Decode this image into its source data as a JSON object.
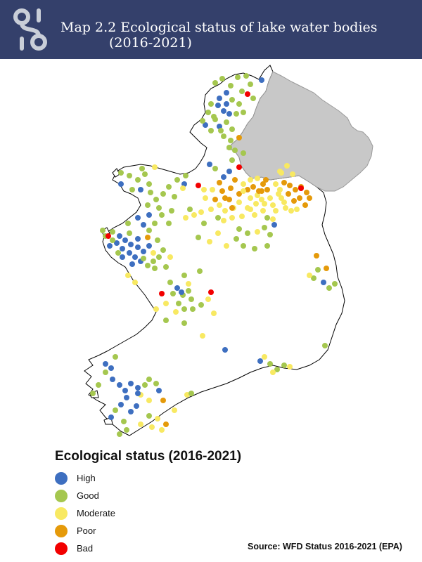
{
  "header": {
    "title_line1": "Map 2.2 Ecological status of lake water bodies",
    "title_line2": "(2016-2021)",
    "logo_icon": "epa-logo-icon"
  },
  "legend": {
    "title": "Ecological status (2016-2021)",
    "items": [
      {
        "label": "High",
        "color": "#3e6fc0"
      },
      {
        "label": "Good",
        "color": "#a5c74f"
      },
      {
        "label": "Moderate",
        "color": "#f8e962"
      },
      {
        "label": "Poor",
        "color": "#e59a0a"
      },
      {
        "label": "Bad",
        "color": "#f20000"
      }
    ]
  },
  "map": {
    "land_color": "#ffffff",
    "outline_color": "#000000",
    "northern_ireland_color": "#c8c8c8"
  },
  "source": "Source:  WFD Status 2016-2021 (EPA)"
}
